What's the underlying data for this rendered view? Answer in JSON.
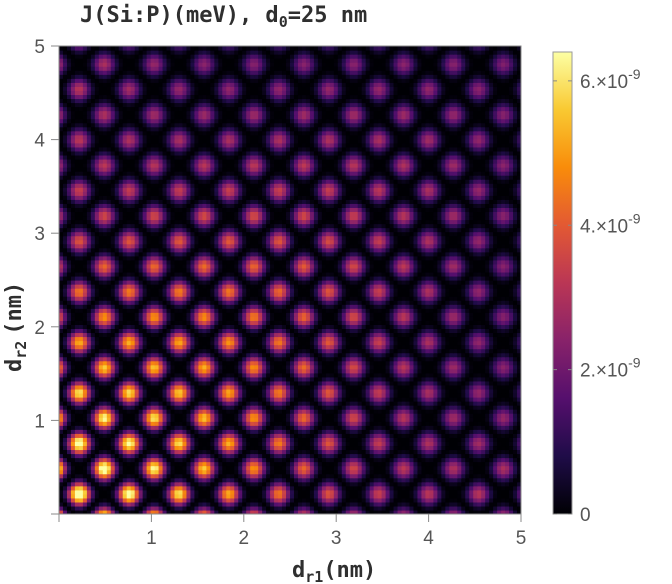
{
  "chart_data": {
    "type": "heatmap",
    "title_main": "J(Si:P)(meV), d",
    "title_sub": "0",
    "title_tail": "=25 nm",
    "xlabel_main": "d",
    "xlabel_sub": "r1",
    "xlabel_unit": "(nm)",
    "ylabel_main": "d",
    "ylabel_sub": "r2",
    "ylabel_unit": "(nm)",
    "xlim": [
      0,
      5
    ],
    "ylim": [
      0,
      5
    ],
    "xticks": [
      "1",
      "2",
      "3",
      "4",
      "5"
    ],
    "yticks": [
      "1",
      "2",
      "3",
      "4",
      "5"
    ],
    "colorbar": {
      "min": 0,
      "max": 6.4e-09,
      "ticks": [
        {
          "value": 0,
          "label": "0",
          "mantissa": "",
          "exponent": ""
        },
        {
          "value": 2e-09,
          "label": "",
          "mantissa": "2.×10",
          "exponent": "-9"
        },
        {
          "value": 4e-09,
          "label": "",
          "mantissa": "4.×10",
          "exponent": "-9"
        },
        {
          "value": 6e-09,
          "label": "",
          "mantissa": "6.×10",
          "exponent": "-9"
        }
      ]
    },
    "colormap": [
      "#000004",
      "#1f0c48",
      "#550f6d",
      "#88226a",
      "#ba3655",
      "#e35933",
      "#f98c0a",
      "#f9c932",
      "#fcffa4"
    ]
  }
}
